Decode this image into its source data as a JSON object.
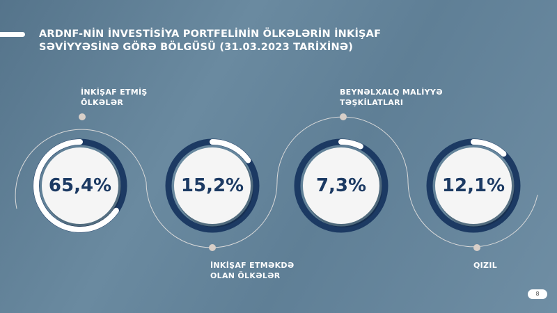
{
  "title": {
    "line1": "ARDNF-NİN İNVESTİSİYA PORTFELİNİN ÖLKƏLƏRİN İNKİŞAF",
    "line2": "SƏVİYYƏSİNƏ GÖRƏ BÖLGÜSÜ (31.03.2023 TARİXİNƏ)"
  },
  "chart_data": {
    "type": "pie",
    "title": "ARDNF-NİN İNVESTİSİYA PORTFELİNİN ÖLKƏLƏRİN İNKİŞAF SƏVİYYƏSİNƏ GÖRƏ BÖLGÜSÜ (31.03.2023 TARİXİNƏ)",
    "categories": [
      "İNKİŞAF ETMİŞ ÖLKƏLƏR",
      "İNKİŞAF ETMƏKDƏ OLAN ÖLKƏLƏR",
      "BEYNƏLXALQ MALİYYƏ TƏŞKİLATLARI",
      "QIZIL"
    ],
    "values": [
      65.4,
      15.2,
      7.3,
      12.1
    ],
    "value_labels": [
      "65,4%",
      "15,2%",
      "7,3%",
      "12,1%"
    ],
    "labels": [
      {
        "line1": "İNKİŞAF ETMİŞ",
        "line2": "ÖLKƏLƏR"
      },
      {
        "line1": "İNKİŞAF ETMƏKDƏ",
        "line2": "OLAN ÖLKƏLƏR"
      },
      {
        "line1": "BEYNƏLXALQ MALİYYƏ",
        "line2": "TƏŞKİLATLARI"
      },
      {
        "line1": "QIZIL",
        "line2": ""
      }
    ]
  },
  "colors": {
    "ring": "#1c3a63",
    "highlight": "#ffffff",
    "text": "#1c3a63"
  },
  "page_number": "8"
}
